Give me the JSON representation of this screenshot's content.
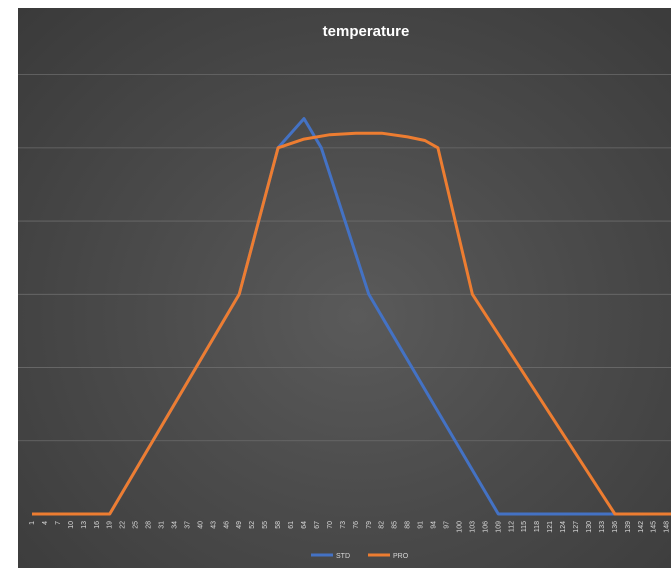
{
  "chart_data": {
    "type": "line",
    "title": "temperature",
    "xlabel": "",
    "ylabel": "",
    "ylim": [
      0,
      6.5
    ],
    "grid": true,
    "legend_position": "bottom",
    "x_ticks": [
      1,
      4,
      7,
      10,
      13,
      16,
      19,
      22,
      25,
      28,
      31,
      34,
      37,
      40,
      43,
      46,
      49,
      52,
      55,
      58,
      61,
      64,
      67,
      70,
      73,
      76,
      79,
      82,
      85,
      88,
      91,
      94,
      97,
      100,
      103,
      106,
      109,
      112,
      115,
      118,
      121,
      124,
      127,
      130,
      133,
      136,
      139,
      142,
      145,
      148
    ],
    "xlim": [
      1,
      149
    ],
    "series": [
      {
        "name": "STD",
        "color": "#4472c4",
        "points": [
          [
            1,
            0
          ],
          [
            19,
            0
          ],
          [
            49,
            3
          ],
          [
            58,
            5
          ],
          [
            64,
            5.4
          ],
          [
            68,
            5.0
          ],
          [
            79,
            3
          ],
          [
            109,
            0
          ],
          [
            149,
            0
          ]
        ]
      },
      {
        "name": "PRO",
        "color": "#ed7d31",
        "points": [
          [
            1,
            0
          ],
          [
            19,
            0
          ],
          [
            49,
            3
          ],
          [
            58,
            5
          ],
          [
            64,
            5.12
          ],
          [
            70,
            5.18
          ],
          [
            76,
            5.2
          ],
          [
            82,
            5.2
          ],
          [
            88,
            5.15
          ],
          [
            92,
            5.1
          ],
          [
            95,
            5.0
          ],
          [
            103,
            3
          ],
          [
            136,
            0
          ],
          [
            149,
            0
          ]
        ]
      }
    ]
  }
}
